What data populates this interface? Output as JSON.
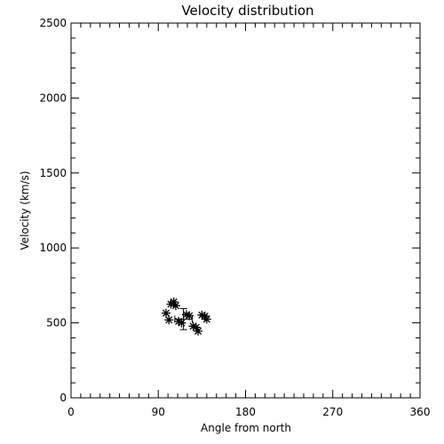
{
  "chart_data": {
    "type": "scatter",
    "title": "Velocity distribution",
    "xlabel": "Angle from north",
    "ylabel": "Velocity (km/s)",
    "xlim": [
      0,
      360
    ],
    "ylim": [
      0,
      2500
    ],
    "xticks": [
      "0",
      "90",
      "180",
      "270",
      "360"
    ],
    "yticks": [
      "0",
      "500",
      "1000",
      "1500",
      "2000",
      "2500"
    ],
    "grid": false,
    "marker": "asterisk",
    "points": [
      {
        "x": 98,
        "y": 565
      },
      {
        "x": 101,
        "y": 520
      },
      {
        "x": 103,
        "y": 625
      },
      {
        "x": 106,
        "y": 640
      },
      {
        "x": 108,
        "y": 615
      },
      {
        "x": 111,
        "y": 510
      },
      {
        "x": 114,
        "y": 500
      },
      {
        "x": 119,
        "y": 555
      },
      {
        "x": 122,
        "y": 548
      },
      {
        "x": 126,
        "y": 478
      },
      {
        "x": 129,
        "y": 470
      },
      {
        "x": 131,
        "y": 445
      },
      {
        "x": 135,
        "y": 552
      },
      {
        "x": 138,
        "y": 545
      },
      {
        "x": 140,
        "y": 525
      }
    ],
    "error_bar": {
      "x": 116,
      "y": 525,
      "x_err": 9,
      "y_err": 70
    },
    "colors": {
      "axis": "#000000",
      "marker": "#000000",
      "background": "#ffffff"
    }
  }
}
